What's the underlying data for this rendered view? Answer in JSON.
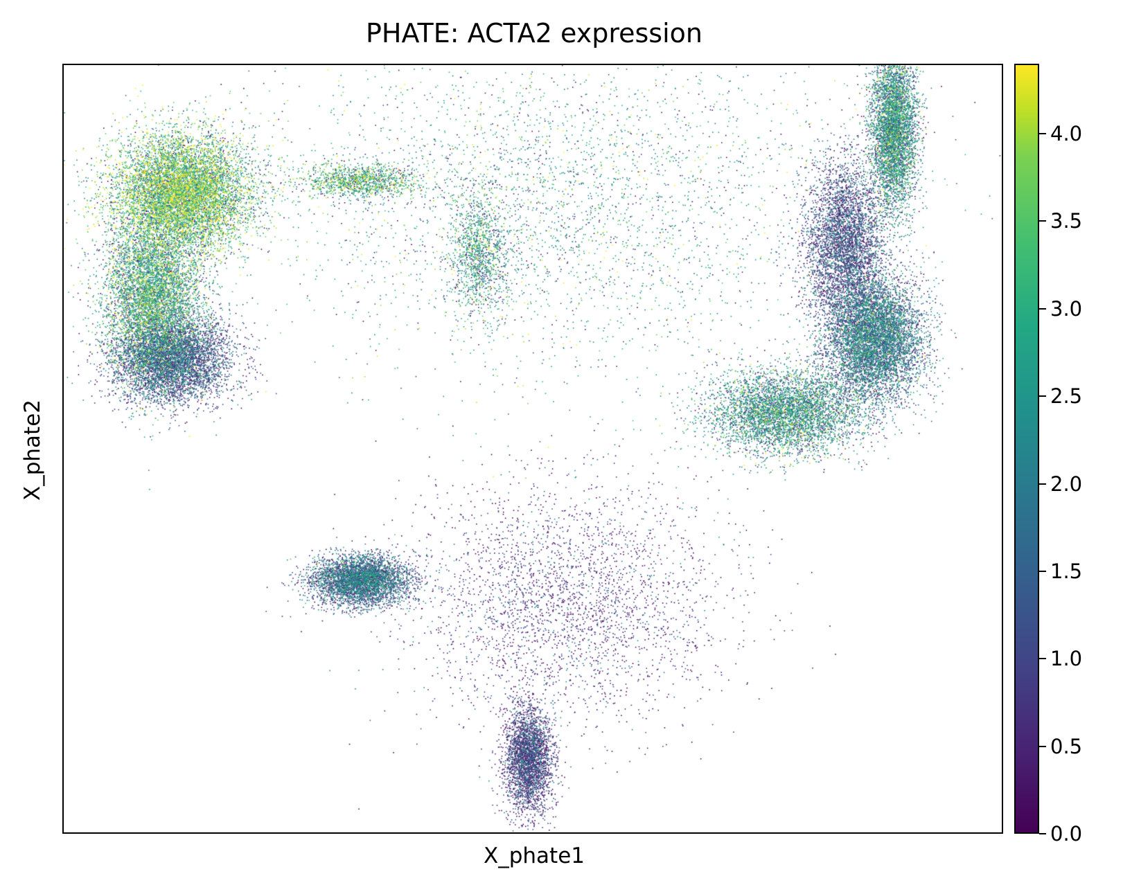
{
  "chart_data": {
    "type": "scatter",
    "title": "PHATE: ACTA2 expression",
    "xlabel": "X_phate1",
    "ylabel": "X_phate2",
    "xlim": [
      -0.045,
      0.05
    ],
    "ylim": [
      -0.04,
      0.033
    ],
    "xticks": [],
    "yticks": [],
    "colorbar": {
      "colormap": "viridis",
      "range": [
        0.0,
        4.4
      ],
      "ticks": [
        0.0,
        0.5,
        1.0,
        1.5,
        2.0,
        2.5,
        3.0,
        3.5,
        4.0
      ],
      "tick_labels": [
        "0.0",
        "0.5",
        "1.0",
        "1.5",
        "2.0",
        "2.5",
        "3.0",
        "3.5",
        "4.0"
      ]
    },
    "point_color_variable": "ACTA2",
    "point_density_regions": [
      {
        "x": -0.033,
        "y": 0.021,
        "spread": [
          0.0035,
          0.0028
        ],
        "weight": 0.14,
        "expr": 3.3
      },
      {
        "x": -0.036,
        "y": 0.011,
        "spread": [
          0.0025,
          0.004
        ],
        "weight": 0.1,
        "expr": 2.8
      },
      {
        "x": -0.034,
        "y": 0.005,
        "spread": [
          0.003,
          0.002
        ],
        "weight": 0.08,
        "expr": 1.2
      },
      {
        "x": -0.015,
        "y": -0.016,
        "spread": [
          0.0025,
          0.0012
        ],
        "weight": 0.07,
        "expr": 1.5
      },
      {
        "x": 0.039,
        "y": 0.027,
        "spread": [
          0.0012,
          0.004
        ],
        "weight": 0.08,
        "expr": 2.3
      },
      {
        "x": 0.034,
        "y": 0.016,
        "spread": [
          0.002,
          0.004
        ],
        "weight": 0.07,
        "expr": 1.0
      },
      {
        "x": 0.037,
        "y": 0.007,
        "spread": [
          0.0025,
          0.003
        ],
        "weight": 0.11,
        "expr": 1.8
      },
      {
        "x": 0.028,
        "y": 0.0,
        "spread": [
          0.004,
          0.002
        ],
        "weight": 0.08,
        "expr": 2.4
      },
      {
        "x": 0.002,
        "y": -0.033,
        "spread": [
          0.0012,
          0.0025
        ],
        "weight": 0.05,
        "expr": 0.8
      },
      {
        "x": -0.015,
        "y": 0.022,
        "spread": [
          0.003,
          0.0008
        ],
        "weight": 0.02,
        "expr": 3.1
      },
      {
        "x": -0.003,
        "y": 0.015,
        "spread": [
          0.0015,
          0.003
        ],
        "weight": 0.02,
        "expr": 2.7
      },
      {
        "x": 0.006,
        "y": -0.018,
        "spread": [
          0.008,
          0.006
        ],
        "weight": 0.05,
        "expr": 0.6
      },
      {
        "x": 0.005,
        "y": 0.02,
        "spread": [
          0.015,
          0.008
        ],
        "weight": 0.06,
        "expr": 2.6
      }
    ]
  }
}
